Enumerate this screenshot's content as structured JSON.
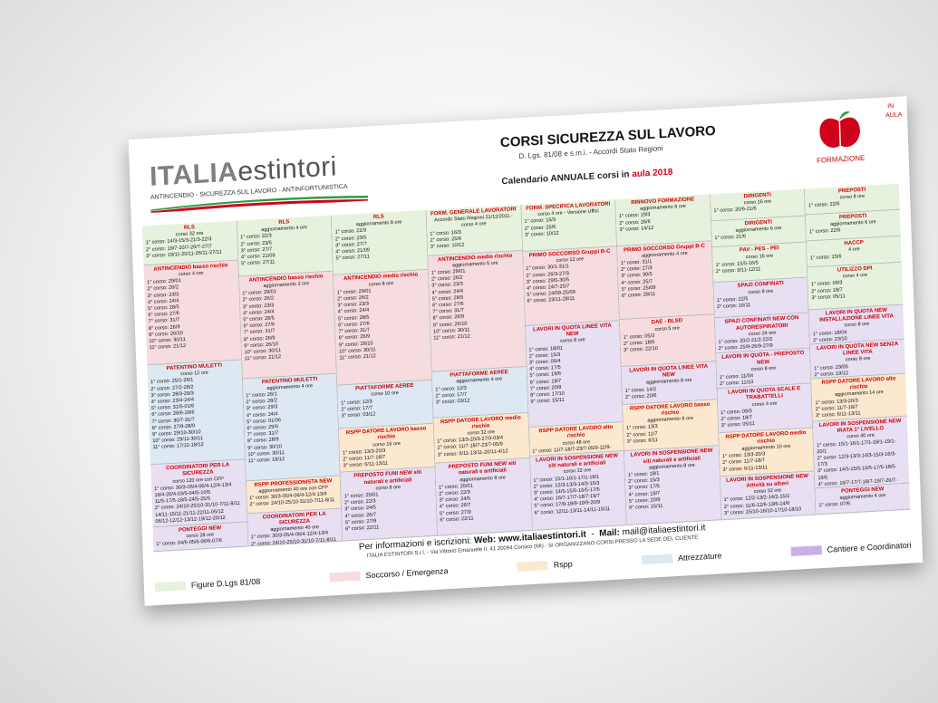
{
  "header": {
    "logo_brand": "ITALIA",
    "logo_suffix": "estintori",
    "logo_tagline": "ANTINCENDIO - SICUREZZA SUL LAVORO - ANTINFORTUNISTICA",
    "title": "CORSI SICUREZZA SUL LAVORO",
    "subtitle": "D. Lgs. 81/08 e s.m.i. - Accordi Stato Regioni",
    "calendar_prefix": "Calendario ANNUALE corsi in",
    "calendar_highlight": "aula 2018",
    "brand_label": "FORMAZIONE",
    "side_label": "IN AULA"
  },
  "columns": [
    {
      "cells": [
        {
          "color": "green",
          "title": "RLS",
          "sub": "corso 32 ore",
          "lines": [
            "1° corso: 14/3-15/3-21/3-22/3",
            "2° corso: 19/7-20/7-26/7-27/7",
            "3° corso: 19/11-20/11-26/11-27/11"
          ]
        },
        {
          "color": "pink",
          "title": "ANTINCENDIO basso rischio",
          "sub": "corso 4 ore",
          "lines": [
            "1° corso: 29/01",
            "2° corso: 26/2",
            "3° corso: 23/3",
            "4° corso: 24/4",
            "5° corso: 28/5",
            "6° corso: 27/6",
            "7° corso: 31/7",
            "8° corso: 26/9",
            "9° corso: 26/10",
            "10° corso: 30/11",
            "11° corso: 21/12"
          ]
        },
        {
          "color": "blue",
          "title": "PATENTINO MULETTI",
          "sub": "corso 12 ore",
          "lines": [
            "1° corso: 25/1-26/1",
            "2° corso: 27/2-28/2",
            "3° corso: 28/3-29/3",
            "4° corso: 23/4-24/4",
            "5° corso: 31/5-01/6",
            "6° corso: 28/6-29/6",
            "7° corso: 30/7-31/7",
            "8° corso: 27/9-28/9",
            "9° corso: 29/10-30/10",
            "10° corso: 29/11-30/11",
            "11° corso: 17/12-18/12"
          ]
        },
        {
          "color": "purple",
          "title": "COORDINATORI PER LA SICUREZZA",
          "sub": "corso 120 ore con CFP",
          "lines": [
            "1° corso: 30/3-05/4-06/4-12/4-13/4",
            "19/4-20/4-03/5-04/5-10/5",
            "11/5-17/5-18/5-24/5-25/5",
            "2° corso: 24/10-25/10-31/10-7/11-8/11",
            "14/11-15/11-21/11-22/11-05/12",
            "06/12-12/12-13/12-19/12-20/12"
          ]
        },
        {
          "color": "purple",
          "title": "PONTEGGI NEW",
          "sub": "corso 28 ore",
          "lines": [
            "1° corso: 04/6-05/6-06/6-07/6"
          ]
        }
      ]
    },
    {
      "cells": [
        {
          "color": "green",
          "title": "RLS",
          "sub": "aggiornamento 4 ore",
          "lines": [
            "1° corso: 22/3",
            "2° corso: 23/5",
            "3° corso: 27/7",
            "4° corso: 21/09",
            "5° corso: 27/11"
          ]
        },
        {
          "color": "pink",
          "title": "ANTINCENDIO basso rischio",
          "sub": "aggiornamento 2 ore",
          "lines": [
            "1° corso: 29/01",
            "2° corso: 26/2",
            "3° corso: 23/3",
            "4° corso: 24/4",
            "5° corso: 28/5",
            "6° corso: 27/6",
            "7° corso: 31/7",
            "8° corso: 26/9",
            "9° corso: 26/10",
            "10° corso: 30/11",
            "11° corso: 21/12"
          ]
        },
        {
          "color": "blue",
          "title": "PATENTINO MULETTI",
          "sub": "aggiornamento 4 ore",
          "lines": [
            "1° corso: 26/1",
            "2° corso: 28/2",
            "3° corso: 29/3",
            "4° corso: 24/4",
            "5° corso: 01/06",
            "6° corso: 29/6",
            "7° corso: 31/7",
            "8° corso: 28/9",
            "9° corso: 30/10",
            "10° corso: 30/11",
            "11° corso: 18/12"
          ]
        },
        {
          "color": "orange",
          "title": "RSPP PROFESSIONISTA NEW",
          "sub": "aggiornamento 40 ore con CFP",
          "lines": [
            "1° corso: 30/3-05/4-06/4-12/4-13/4",
            "2° corso: 24/10-25/10-31/10-7/11-8/11"
          ]
        },
        {
          "color": "purple",
          "title": "COORDINATORI PER LA SICUREZZA",
          "sub": "aggiornamento 40 ore",
          "lines": [
            "1° corso: 30/3-05/4-06/4-12/4-13/4",
            "2° corso: 24/10-25/10-31/10-7/11-8/11"
          ]
        }
      ]
    },
    {
      "cells": [
        {
          "color": "green",
          "title": "RLS",
          "sub": "aggiornamento 8 ore",
          "lines": [
            "1° corso: 22/3",
            "2° corso: 23/5",
            "3° corso: 27/7",
            "4° corso: 21/09",
            "5° corso: 27/11"
          ]
        },
        {
          "color": "pink",
          "title": "ANTINCENDIO medio rischio",
          "sub": "corso 8 ore",
          "lines": [
            "1° corso: 29/01",
            "2° corso: 26/2",
            "3° corso: 23/3",
            "4° corso: 24/4",
            "5° corso: 28/5",
            "6° corso: 27/6",
            "7° corso: 31/7",
            "8° corso: 26/9",
            "9° corso: 26/10",
            "10° corso: 30/11",
            "11° corso: 21/12"
          ]
        },
        {
          "color": "blue",
          "title": "PIATTAFORME AEREE",
          "sub": "corso 10 ore",
          "lines": [
            "1° corso: 12/3",
            "2° corso: 17/7",
            "3° corso: 03/12"
          ]
        },
        {
          "color": "orange",
          "title": "RSPP DATORE LAVORO basso rischio",
          "sub": "corso 16 ore",
          "lines": [
            "1° corso: 13/3-20/3",
            "2° corso: 11/7-18/7",
            "3° corso: 6/11-13/11"
          ]
        },
        {
          "color": "purple",
          "title": "PREPOSTO FUNI NEW siti naturali e artificiali",
          "sub": "corso 8 ore",
          "lines": [
            "1° corso: 25/01",
            "2° corso: 22/3",
            "3° corso: 24/5",
            "4° corso: 26/7",
            "5° corso: 27/9",
            "6° corso: 22/11"
          ]
        }
      ]
    },
    {
      "cells": [
        {
          "color": "green",
          "title": "FORM. GENERALE LAVORATORI",
          "sub": "Accordo Stato Regioni 21/12/2011 - corso 4 ore",
          "lines": [
            "1° corso: 16/3",
            "2° corso: 25/6",
            "3° corso: 10/12"
          ]
        },
        {
          "color": "pink",
          "title": "ANTINCENDIO medio rischio",
          "sub": "aggiornamento 5 ore",
          "lines": [
            "1° corso: 29/01",
            "2° corso: 26/2",
            "3° corso: 23/3",
            "4° corso: 24/4",
            "5° corso: 28/5",
            "6° corso: 27/6",
            "7° corso: 31/7",
            "8° corso: 26/9",
            "9° corso: 26/10",
            "10° corso: 30/11",
            "11° corso: 21/12"
          ]
        },
        {
          "color": "blue",
          "title": "PIATTAFORME AEREE",
          "sub": "aggiornamento 4 ore",
          "lines": [
            "1° corso: 12/3",
            "2° corso: 17/7",
            "3° corso: 03/12"
          ]
        },
        {
          "color": "orange",
          "title": "RSPP DATORE LAVORO medio rischio",
          "sub": "corso 32 ore",
          "lines": [
            "1° corso: 13/3-20/3-27/3-03/4",
            "2° corso: 11/7-18/7-23/7-05/9",
            "3° corso: 6/11-13/11-20/11-4/12"
          ]
        },
        {
          "color": "purple",
          "title": "PREPOSTO FUNI NEW siti naturali e artificiali",
          "sub": "aggiornamento 8 ore",
          "lines": [
            "1° corso: 25/01",
            "2° corso: 22/3",
            "3° corso: 24/5",
            "4° corso: 26/7",
            "5° corso: 27/9",
            "6° corso: 22/11"
          ]
        }
      ]
    },
    {
      "cells": [
        {
          "color": "green",
          "title": "FORM. SPECIFICA LAVORATORI",
          "sub": "corso 4 ore - Versione Uffici",
          "lines": [
            "1° corso: 16/3",
            "2° corso: 25/6",
            "3° corso: 10/12"
          ]
        },
        {
          "color": "pink",
          "title": "PRIMO SOCCORSO Gruppi B-C",
          "sub": "corso 12 ore",
          "lines": [
            "1° corso: 30/1-31/1",
            "2° corso: 26/3-27/3",
            "3° corso: 29/5-30/5",
            "4° corso: 24/7-25/7",
            "5° corso: 24/09-25/09",
            "6° corso: 23/11-28/11"
          ]
        },
        {
          "color": "purple",
          "title": "LAVORI IN QUOTA LINEE VITA NEW",
          "sub": "corso 8 ore",
          "lines": [
            "1° corso: 18/01",
            "2° corso: 15/3",
            "3° corso: 05/4",
            "4° corso: 17/5",
            "5° corso: 19/6",
            "6° corso: 19/7",
            "7° corso: 20/9",
            "8° corso: 17/10",
            "9° corso: 15/11"
          ]
        },
        {
          "color": "orange",
          "title": "RSPP DATORE LAVORO alto rischio",
          "sub": "corso 48 ore",
          "lines": [
            "1° corso: 11/7-18/7-23/7-05/9-12/9-19/9"
          ]
        },
        {
          "color": "purple",
          "title": "LAVORI IN SOSPENSIONE NEW siti naturali e artificiali",
          "sub": "corso 32 ore",
          "lines": [
            "1° corso: 15/1-16/1-17/1-18/1",
            "2° corso: 12/3-13/3-14/3-15/3",
            "3° corso: 14/5-15/5-16/5-17/5",
            "4° corso: 16/7-17/7-18/7-19/7",
            "5° corso: 17/9-18/9-19/9-20/9",
            "6° corso: 12/11-13/11-14/11-15/11"
          ]
        }
      ]
    },
    {
      "cells": [
        {
          "color": "green",
          "title": "RINNOVO FORMAZIONE",
          "sub": "aggiornamento 6 ore",
          "lines": [
            "1° corso: 19/3",
            "2° corso: 26/6",
            "3° corso: 14/12"
          ]
        },
        {
          "color": "pink",
          "title": "PRIMO SOCCORSO Gruppi B-C",
          "sub": "aggiornamento 4 ore",
          "lines": [
            "1° corso: 31/1",
            "2° corso: 27/3",
            "3° corso: 30/5",
            "4° corso: 25/7",
            "5° corso: 25/09",
            "6° corso: 28/11"
          ]
        },
        {
          "color": "pink",
          "title": "DAE - BLSD",
          "sub": "corso 5 ore",
          "lines": [
            "1° corso: 05/3",
            "2° corso: 18/6",
            "3° corso: 22/10"
          ]
        },
        {
          "color": "purple",
          "title": "LAVORI IN QUOTA LINEE VITA NEW",
          "sub": "aggiornamento 8 ore",
          "lines": [
            "1° corso: 14/2",
            "2° corso: 20/6"
          ]
        },
        {
          "color": "orange",
          "title": "RSPP DATORE LAVORO basso rischio",
          "sub": "aggiornamento 6 ore",
          "lines": [
            "1° corso: 13/3",
            "2° corso: 11/7",
            "3° corso: 6/11"
          ]
        },
        {
          "color": "purple",
          "title": "LAVORI IN SOSPENSIONE NEW siti naturali e artificiali",
          "sub": "aggiornamento 8 ore",
          "lines": [
            "1° corso: 18/1",
            "2° corso: 15/3",
            "3° corso: 17/5",
            "4° corso: 19/7",
            "5° corso: 20/9",
            "6° corso: 15/11"
          ]
        }
      ]
    },
    {
      "cells": [
        {
          "color": "green",
          "title": "DIRIGENTI",
          "sub": "corso 16 ore",
          "lines": [
            "1° corso: 20/6-21/6"
          ]
        },
        {
          "color": "green",
          "title": "DIRIGENTI",
          "sub": "aggiornamento 6 ore",
          "lines": [
            "1° corso: 21/6"
          ]
        },
        {
          "color": "green",
          "title": "PAV - PES - PEI",
          "sub": "corso 16 ore",
          "lines": [
            "1° corso: 15/5-16/5",
            "2° corso: 9/11-12/11"
          ]
        },
        {
          "color": "purple",
          "title": "SPAZI CONFINATI",
          "sub": "corso 8 ore",
          "lines": [
            "1° corso: 22/5",
            "2° corso: 16/11"
          ]
        },
        {
          "color": "purple",
          "title": "SPAZI CONFINATI NEW CON AUTORESPIRATORI",
          "sub": "corso 24 ore",
          "lines": [
            "1° corso: 20/2-21/2-22/2",
            "2° corso: 25/9-26/9-27/9"
          ]
        },
        {
          "color": "purple",
          "title": "LAVORI IN QUOTA - PREPOSTO NEW",
          "sub": "corso 8 ore",
          "lines": [
            "1° corso: 11/04",
            "2° corso: 11/10"
          ]
        },
        {
          "color": "purple",
          "title": "LAVORI IN QUOTA SCALE E TRABATTELLI",
          "sub": "corso 4 ore",
          "lines": [
            "1° corso: 09/3",
            "2° corso: 18/7",
            "3° corso: 05/11"
          ]
        },
        {
          "color": "orange",
          "title": "RSPP DATORE LAVORO medio rischio",
          "sub": "aggiornamento 10 ore",
          "lines": [
            "1° corso: 13/3-20/3",
            "2° corso: 11/7-18/7",
            "3° corso: 6/11-13/11"
          ]
        },
        {
          "color": "purple",
          "title": "LAVORI IN SOSPENSIONE NEW Attività su alberi",
          "sub": "corso 32 ore",
          "lines": [
            "1° corso: 12/2-13/2-14/2-15/2",
            "2° corso: 11/6-12/6-13/6-14/6",
            "3° corso: 15/10-16/10-17/10-18/10"
          ]
        }
      ]
    },
    {
      "cells": [
        {
          "color": "green",
          "title": "PREPOSTI",
          "sub": "corso 8 ore",
          "lines": [
            "1° corso: 22/6"
          ]
        },
        {
          "color": "green",
          "title": "PREPOSTI",
          "sub": "aggiornamento 6 ore",
          "lines": [
            "1° corso: 22/6"
          ]
        },
        {
          "color": "green",
          "title": "HACCP",
          "sub": "4 ore",
          "lines": [
            "1° corso: 15/6"
          ]
        },
        {
          "color": "green",
          "title": "UTILIZZO DPI",
          "sub": "corso 4 ore",
          "lines": [
            "1° corso: 09/3",
            "2° corso: 18/7",
            "3° corso: 05/11"
          ]
        },
        {
          "color": "purple",
          "title": "LAVORI IN QUOTA NEW INSTALLAZIONE LINEE VITA",
          "sub": "corso 8 ore",
          "lines": [
            "1° corso: 18/04",
            "2° corso: 23/10"
          ]
        },
        {
          "color": "purple",
          "title": "LAVORI IN QUOTA NEW SENZA LINEE VITA",
          "sub": "corso 8 ore",
          "lines": [
            "1° corso: 23/05",
            "2° corso: 19/12"
          ]
        },
        {
          "color": "orange",
          "title": "RSPP DATORE LAVORO alto rischio",
          "sub": "aggiornamento 14 ore",
          "lines": [
            "1° corso: 13/3-20/3",
            "2° corso: 11/7-18/7",
            "3° corso: 6/11-13/11"
          ]
        },
        {
          "color": "purple",
          "title": "LAVORI IN SOSPENSIONE NEW IRATA 1° LIVELLO",
          "sub": "corso 40 ore",
          "lines": [
            "1° corso: 15/1-16/1-17/1-18/1-19/1-20/1",
            "2° corso: 12/3-13/3-14/3-15/3-16/3-17/3",
            "3° corso: 14/5-15/5-16/5-17/5-18/5-19/5",
            "4° corso: 16/7-17/7-18/7-19/7-20/7-21/7",
            "5° corso: 17/9-18/9-19/9-20/9-21/9-22/9",
            "6° corso: 12/11-13/11-14/11-15/11-16/11"
          ]
        },
        {
          "color": "purple",
          "title": "PONTEGGI NEW",
          "sub": "aggiornamento 4 ore",
          "lines": [
            "1° corso: 07/6"
          ]
        }
      ]
    }
  ],
  "footer": {
    "info_label": "Per informazioni e iscrizioni:",
    "web_label": "Web:",
    "web_value": "www.italiaestintori.it",
    "mail_label": "Mail:",
    "mail_value": "mail@italiaestintori.it",
    "address": "ITALIA ESTINTORI S.r.l. - Via Vittorio Emanuele II, 41 20094 Corsico (MI) - SI ORGANIZZANO CORSI PRESSO LA SEDE DEL CLIENTE"
  },
  "legend": [
    {
      "label": "Figure D.Lgs 81/08",
      "color": "#e6f2dd"
    },
    {
      "label": "Soccorso / Emergenza",
      "color": "#f6dcdf"
    },
    {
      "label": "Rspp",
      "color": "#fbe8cf"
    },
    {
      "label": "Attrezzature",
      "color": "#dde8f2"
    },
    {
      "label": "Cantiere e Coordinatori",
      "color": "#c9b0e8"
    }
  ]
}
